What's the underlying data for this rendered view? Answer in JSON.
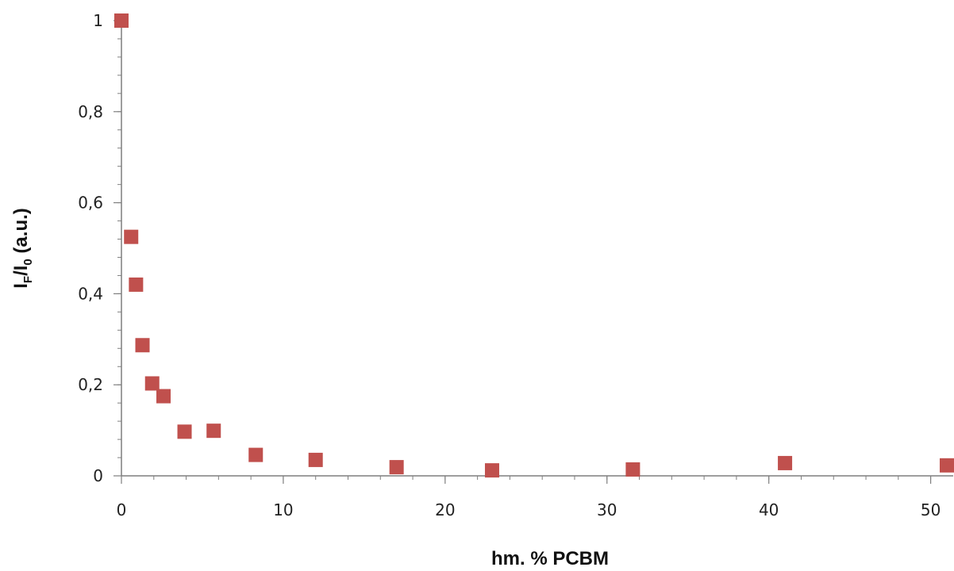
{
  "chart_data": {
    "type": "scatter",
    "title": "",
    "xlabel": "hm. % PCBM",
    "ylabel": {
      "main": "I",
      "sub1": "F",
      "mid": "/I",
      "sub2": "0",
      "tail": " (a.u.)"
    },
    "xlim": [
      0,
      51
    ],
    "ylim": [
      0,
      1
    ],
    "x_ticks": [
      {
        "value": 0,
        "label": "0"
      },
      {
        "value": 10,
        "label": "10"
      },
      {
        "value": 20,
        "label": "20"
      },
      {
        "value": 30,
        "label": "30"
      },
      {
        "value": 40,
        "label": "40"
      },
      {
        "value": 50,
        "label": "50"
      }
    ],
    "y_ticks": [
      {
        "value": 0,
        "label": "0"
      },
      {
        "value": 0.2,
        "label": "0,2"
      },
      {
        "value": 0.4,
        "label": "0,4"
      },
      {
        "value": 0.6,
        "label": "0,6"
      },
      {
        "value": 0.8,
        "label": "0,8"
      },
      {
        "value": 1,
        "label": "1"
      }
    ],
    "x_minor_step": 2,
    "y_minor_step": 0.04,
    "grid": false,
    "legend": "none",
    "marker_color": "#c0504d",
    "series": [
      {
        "x": [
          0,
          0.6,
          0.9,
          1.3,
          1.9,
          2.6,
          3.9,
          5.7,
          8.3,
          12.0,
          17.0,
          22.9,
          31.6,
          41.0,
          51.0
        ],
        "y": [
          1.0,
          0.525,
          0.42,
          0.287,
          0.203,
          0.175,
          0.097,
          0.099,
          0.046,
          0.035,
          0.019,
          0.012,
          0.014,
          0.028,
          0.023
        ]
      }
    ]
  }
}
